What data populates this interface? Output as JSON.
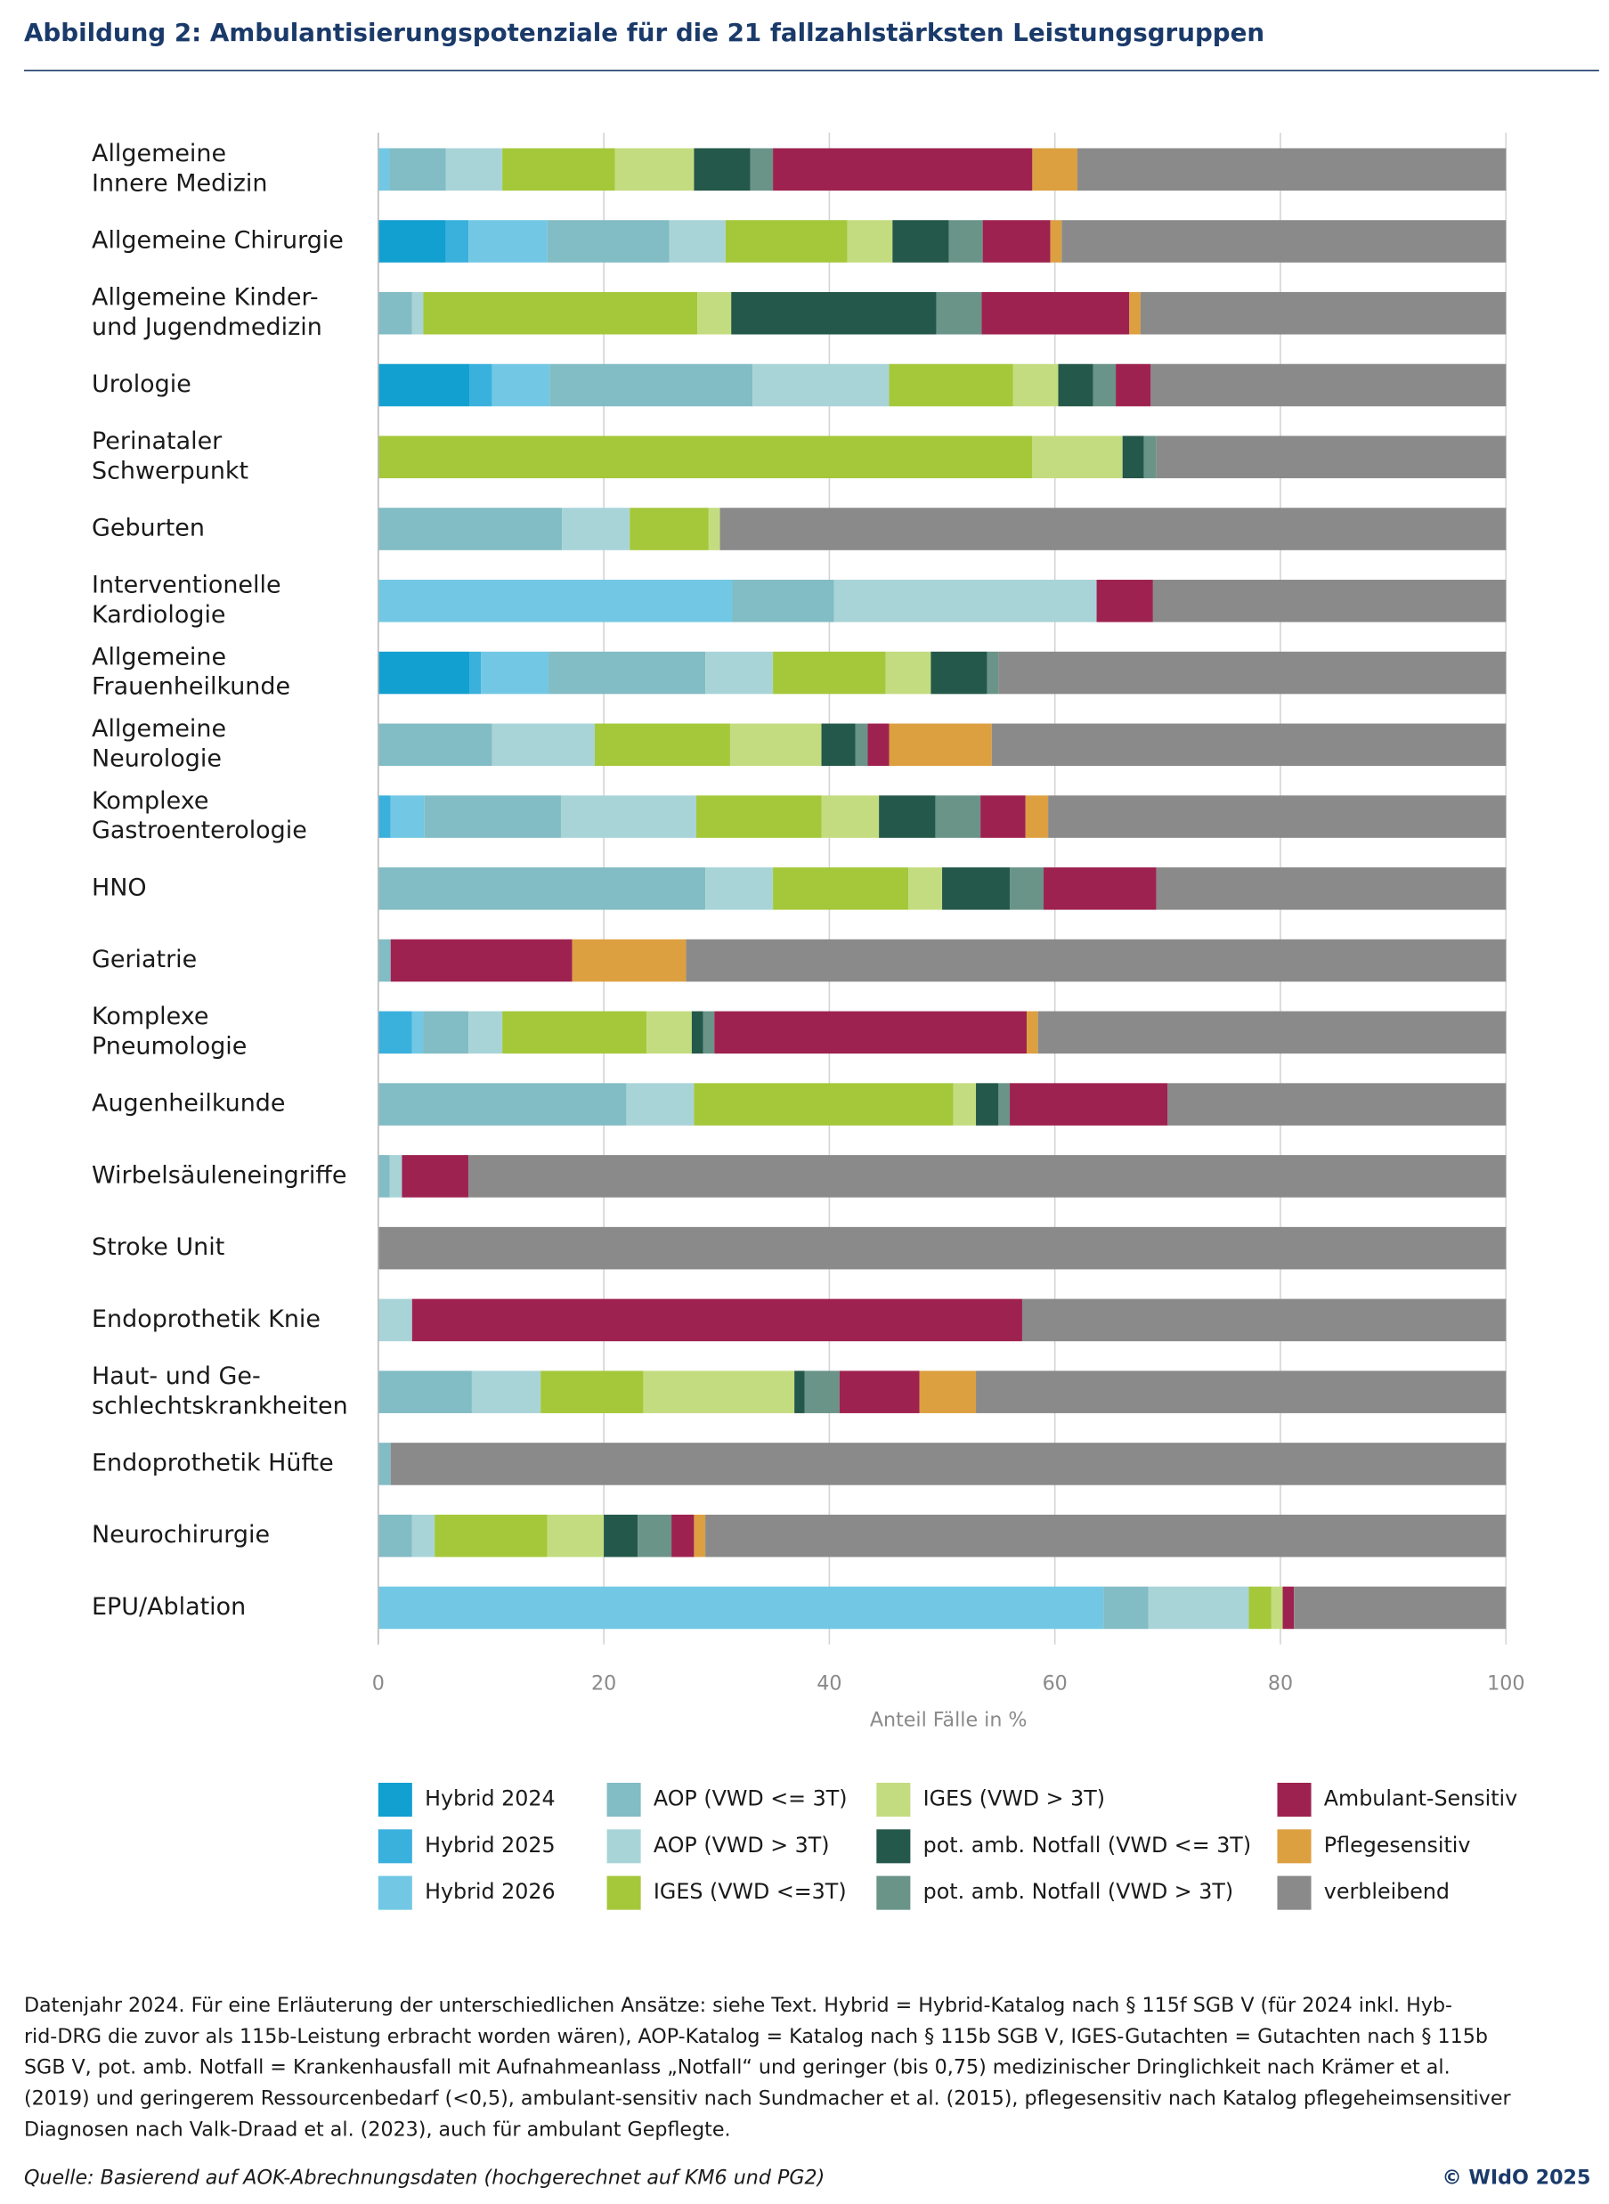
{
  "chart_data": {
    "type": "stacked-barh",
    "title": "Abbildung 2: Ambulantisierungspotenziale für die 21 fallzahlstärksten Leistungsgruppen",
    "xlabel": "Anteil Fälle in %",
    "categories": [
      [
        "Allgemeine",
        "Innere Medizin"
      ],
      [
        "Allgemeine Chirurgie"
      ],
      [
        "Allgemeine Kinder-",
        "und Jugendmedizin"
      ],
      [
        "Urologie"
      ],
      [
        "Perinataler",
        "Schwerpunkt"
      ],
      [
        "Geburten"
      ],
      [
        "Interventionelle",
        "Kardiologie"
      ],
      [
        "Allgemeine",
        "Frauenheilkunde"
      ],
      [
        "Allgemeine",
        "Neurologie"
      ],
      [
        "Komplexe",
        "Gastroenterologie"
      ],
      [
        "HNO"
      ],
      [
        "Geriatrie"
      ],
      [
        "Komplexe",
        "Pneumologie"
      ],
      [
        "Augenheilkunde"
      ],
      [
        "Wirbelsäuleneingriffe"
      ],
      [
        "Stroke Unit"
      ],
      [
        "Endoprothetik Knie"
      ],
      [
        "Haut- und Ge-",
        "schlechtskrankheiten"
      ],
      [
        "Endoprothetik Hüfte"
      ],
      [
        "Neurochirurgie"
      ],
      [
        "EPU/Ablation"
      ]
    ],
    "series": [
      {
        "name": "Hybrid 2024",
        "color": "#12a0d0",
        "values": [
          0,
          6,
          0,
          8.1,
          0,
          0,
          0,
          8.1,
          0,
          0,
          0,
          0,
          0,
          0,
          0,
          0,
          0,
          0,
          0,
          0,
          0
        ]
      },
      {
        "name": "Hybrid 2025",
        "color": "#3ab0dc",
        "values": [
          0,
          2,
          0,
          2,
          0,
          0,
          0,
          1,
          0,
          1.1,
          0,
          0,
          3,
          0,
          0,
          0,
          0,
          0,
          0,
          0,
          0
        ]
      },
      {
        "name": "Hybrid 2026",
        "color": "#72c8e4",
        "values": [
          1,
          7,
          0,
          5.1,
          0,
          0,
          31.4,
          6,
          0,
          3,
          0,
          0,
          1,
          0,
          0,
          0,
          0,
          0,
          0,
          0,
          64.3
        ]
      },
      {
        "name": "AOP (VWD <= 3T)",
        "color": "#82bcc4",
        "values": [
          5,
          10.8,
          3,
          18,
          0,
          16.3,
          9,
          13.9,
          10.1,
          12.1,
          29,
          1.1,
          4,
          22,
          1,
          0,
          0,
          8.3,
          1.1,
          3,
          4
        ]
      },
      {
        "name": "AOP (VWD > 3T)",
        "color": "#a8d4d8",
        "values": [
          5,
          5,
          1,
          12.1,
          0,
          6,
          23.3,
          6,
          9.1,
          12,
          6,
          0,
          3,
          6,
          1.1,
          0,
          3,
          6.1,
          0,
          2,
          8.9
        ]
      },
      {
        "name": "IGES (VWD <=3T)",
        "color": "#a4c83a",
        "values": [
          10,
          10.8,
          24.3,
          11,
          58,
          7,
          0,
          10,
          12,
          11.1,
          12,
          0,
          12.8,
          23,
          0,
          0,
          0,
          9.1,
          0,
          10,
          2
        ]
      },
      {
        "name": "IGES (VWD > 3T)",
        "color": "#c4dc80",
        "values": [
          7,
          4,
          3,
          4,
          8,
          1,
          0,
          4,
          8.1,
          5.1,
          3,
          0,
          4,
          2,
          0,
          0,
          0,
          13.4,
          0,
          5,
          1
        ]
      },
      {
        "name": "pot. amb. Notfall (VWD <= 3T)",
        "color": "#24584a",
        "values": [
          5,
          5,
          18.2,
          3.1,
          1.9,
          0,
          0,
          5,
          3,
          5,
          6,
          0,
          1,
          2,
          0,
          0,
          0,
          0.9,
          0,
          3,
          0
        ]
      },
      {
        "name": "pot. amb. Notfall (VWD > 3T)",
        "color": "#6a9488",
        "values": [
          2,
          3,
          4,
          2,
          1.1,
          0,
          0,
          1,
          1.1,
          4,
          3,
          0,
          1,
          1,
          0,
          0,
          0,
          3.1,
          0,
          3,
          0
        ]
      },
      {
        "name": "Ambulant-Sensitiv",
        "color": "#9e2250",
        "values": [
          23,
          6,
          13.1,
          3.1,
          0,
          0,
          5,
          0,
          1.9,
          4,
          10,
          16.1,
          27.7,
          14,
          5.9,
          0,
          54.1,
          7.1,
          0,
          2,
          1
        ]
      },
      {
        "name": "Pflegesensitiv",
        "color": "#dca040",
        "values": [
          4,
          1,
          1,
          0,
          0,
          0,
          0,
          0,
          9.1,
          2,
          0,
          10.1,
          1,
          0,
          0,
          0,
          0,
          5,
          0,
          1,
          0
        ]
      },
      {
        "name": "verbleibend",
        "color": "#8a8a8a",
        "values": [
          38,
          39.4,
          32.4,
          31.5,
          31,
          69.7,
          31.3,
          45,
          45.6,
          40.6,
          31,
          72.7,
          41.5,
          30,
          92,
          100,
          42.9,
          47,
          98.9,
          71,
          18.8
        ]
      }
    ],
    "xlim": [
      0,
      100
    ],
    "xticks": [
      0,
      20,
      40,
      60,
      80,
      100
    ],
    "grid": true,
    "note": [
      "Datenjahr 2024. Für eine Erläuterung der unterschiedlichen Ansätze: siehe Text. Hybrid = Hybrid-Katalog nach § 115f SGB V (für 2024 inkl. Hyb-",
      "rid-DRG die zuvor als 115b-Leistung erbracht worden wären), AOP-Katalog = Katalog nach § 115b SGB V, IGES-Gutachten = Gutachten nach § 115b",
      "SGB V, pot. amb. Notfall = Krankenhausfall mit Aufnahmeanlass „Notfall“ und geringer (bis 0,75) medizinischer Dringlichkeit nach Krämer et al.",
      "(2019) und geringerem Ressourcenbedarf (<0,5), ambulant-sensitiv nach Sundmacher et al. (2015), pflegesensitiv nach Katalog pflegeheimsensitiver",
      "Diagnosen nach Valk-Draad et al. (2023), auch für ambulant Gepflegte."
    ],
    "source": "Quelle: Basierend auf AOK-Abrechnungsdaten (hochgerechnet auf KM6 und PG2)",
    "copyright": "© WIdO 2025"
  }
}
